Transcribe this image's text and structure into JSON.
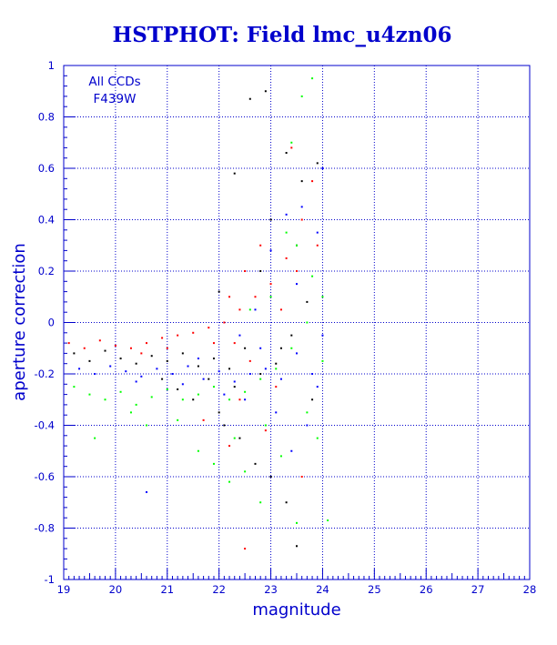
{
  "chart_data": {
    "type": "scatter",
    "title": "HSTPHOT: Field lmc_u4zn06",
    "xlabel": "magnitude",
    "ylabel": "aperture correction",
    "xlim": [
      19,
      28
    ],
    "ylim": [
      -1,
      1
    ],
    "xticks": [
      "19",
      "20",
      "21",
      "22",
      "23",
      "24",
      "25",
      "26",
      "27",
      "28"
    ],
    "yticks": [
      "-1",
      "-0.8",
      "-0.6",
      "-0.4",
      "-0.2",
      "0",
      "0.2",
      "0.4",
      "0.6",
      "0.8",
      "1"
    ],
    "grid": true,
    "annotations": [
      "All CCDs",
      "F439W"
    ],
    "colors": {
      "axis": "#0000cc",
      "grid": "#0000cc"
    },
    "series": [
      {
        "color": "#000000",
        "points": [
          [
            19.2,
            -0.12
          ],
          [
            19.5,
            -0.15
          ],
          [
            19.8,
            -0.11
          ],
          [
            20.1,
            -0.14
          ],
          [
            20.4,
            -0.16
          ],
          [
            20.7,
            -0.13
          ],
          [
            21.0,
            -0.15
          ],
          [
            21.3,
            -0.12
          ],
          [
            21.6,
            -0.17
          ],
          [
            21.9,
            -0.14
          ],
          [
            22.2,
            -0.18
          ],
          [
            22.5,
            -0.1
          ],
          [
            22.8,
            -0.2
          ],
          [
            23.1,
            -0.16
          ],
          [
            23.4,
            -0.05
          ],
          [
            23.7,
            0.08
          ],
          [
            21.5,
            -0.3
          ],
          [
            22.0,
            -0.35
          ],
          [
            22.4,
            -0.45
          ],
          [
            22.7,
            -0.55
          ],
          [
            23.0,
            -0.6
          ],
          [
            23.3,
            -0.7
          ],
          [
            23.5,
            -0.87
          ],
          [
            22.9,
            0.9
          ],
          [
            22.6,
            0.87
          ],
          [
            23.3,
            0.66
          ],
          [
            23.6,
            0.55
          ],
          [
            23.9,
            0.62
          ],
          [
            22.3,
            0.58
          ],
          [
            23.5,
            0.3
          ],
          [
            22.8,
            0.2
          ],
          [
            22.0,
            0.12
          ],
          [
            22.3,
            -0.25
          ],
          [
            21.8,
            -0.22
          ],
          [
            23.2,
            -0.1
          ],
          [
            20.9,
            -0.22
          ],
          [
            21.2,
            -0.26
          ],
          [
            22.1,
            -0.4
          ],
          [
            23.8,
            -0.3
          ],
          [
            23.0,
            0.4
          ]
        ]
      },
      {
        "color": "#ff0000",
        "points": [
          [
            19.1,
            -0.08
          ],
          [
            19.4,
            -0.1
          ],
          [
            19.7,
            -0.07
          ],
          [
            20.0,
            -0.09
          ],
          [
            20.3,
            -0.1
          ],
          [
            20.6,
            -0.08
          ],
          [
            20.9,
            -0.06
          ],
          [
            21.2,
            -0.05
          ],
          [
            21.5,
            -0.04
          ],
          [
            21.8,
            -0.02
          ],
          [
            22.1,
            0.0
          ],
          [
            22.4,
            0.05
          ],
          [
            22.7,
            0.1
          ],
          [
            23.0,
            0.15
          ],
          [
            23.3,
            0.25
          ],
          [
            23.6,
            0.4
          ],
          [
            23.8,
            0.55
          ],
          [
            23.4,
            0.68
          ],
          [
            22.8,
            0.3
          ],
          [
            22.5,
            0.2
          ],
          [
            22.2,
            0.1
          ],
          [
            21.9,
            -0.08
          ],
          [
            22.6,
            -0.15
          ],
          [
            23.1,
            -0.25
          ],
          [
            22.4,
            -0.3
          ],
          [
            22.9,
            -0.42
          ],
          [
            22.2,
            -0.48
          ],
          [
            21.7,
            -0.38
          ],
          [
            22.5,
            -0.88
          ],
          [
            23.6,
            -0.6
          ],
          [
            23.9,
            0.3
          ],
          [
            23.2,
            0.05
          ],
          [
            20.5,
            -0.12
          ],
          [
            21.0,
            -0.1
          ],
          [
            23.5,
            0.2
          ],
          [
            22.3,
            -0.08
          ]
        ]
      },
      {
        "color": "#0000ff",
        "points": [
          [
            19.3,
            -0.18
          ],
          [
            19.6,
            -0.2
          ],
          [
            19.9,
            -0.17
          ],
          [
            20.2,
            -0.19
          ],
          [
            20.5,
            -0.21
          ],
          [
            20.8,
            -0.18
          ],
          [
            21.1,
            -0.2
          ],
          [
            21.4,
            -0.17
          ],
          [
            21.7,
            -0.22
          ],
          [
            22.0,
            -0.19
          ],
          [
            22.3,
            -0.23
          ],
          [
            22.6,
            -0.2
          ],
          [
            22.9,
            -0.18
          ],
          [
            23.2,
            -0.22
          ],
          [
            23.5,
            -0.12
          ],
          [
            23.8,
            -0.2
          ],
          [
            23.6,
            0.45
          ],
          [
            23.3,
            0.42
          ],
          [
            23.0,
            0.28
          ],
          [
            22.7,
            0.05
          ],
          [
            22.4,
            -0.05
          ],
          [
            23.9,
            0.35
          ],
          [
            24.0,
            0.6
          ],
          [
            23.1,
            -0.35
          ],
          [
            22.5,
            -0.3
          ],
          [
            23.4,
            -0.5
          ],
          [
            23.7,
            -0.4
          ],
          [
            22.1,
            -0.28
          ],
          [
            21.6,
            -0.14
          ],
          [
            24.0,
            -0.05
          ],
          [
            23.5,
            0.15
          ],
          [
            22.8,
            -0.1
          ],
          [
            20.4,
            -0.23
          ],
          [
            21.3,
            -0.24
          ],
          [
            23.9,
            -0.25
          ],
          [
            20.6,
            -0.66
          ]
        ]
      },
      {
        "color": "#00ff00",
        "points": [
          [
            19.2,
            -0.25
          ],
          [
            19.5,
            -0.28
          ],
          [
            19.8,
            -0.3
          ],
          [
            20.1,
            -0.27
          ],
          [
            20.4,
            -0.32
          ],
          [
            20.7,
            -0.29
          ],
          [
            21.0,
            -0.26
          ],
          [
            21.3,
            -0.3
          ],
          [
            21.6,
            -0.28
          ],
          [
            21.9,
            -0.25
          ],
          [
            22.2,
            -0.3
          ],
          [
            22.5,
            -0.27
          ],
          [
            22.8,
            -0.22
          ],
          [
            23.1,
            -0.18
          ],
          [
            23.4,
            -0.1
          ],
          [
            23.7,
            0.0
          ],
          [
            24.0,
            -0.15
          ],
          [
            23.8,
            0.18
          ],
          [
            23.5,
            0.3
          ],
          [
            23.3,
            0.35
          ],
          [
            23.6,
            0.88
          ],
          [
            23.8,
            0.95
          ],
          [
            23.4,
            0.7
          ],
          [
            23.0,
            0.1
          ],
          [
            22.6,
            0.05
          ],
          [
            22.3,
            -0.45
          ],
          [
            21.6,
            -0.5
          ],
          [
            21.9,
            -0.55
          ],
          [
            22.2,
            -0.62
          ],
          [
            22.5,
            -0.58
          ],
          [
            22.8,
            -0.7
          ],
          [
            23.2,
            -0.52
          ],
          [
            23.5,
            -0.78
          ],
          [
            24.1,
            -0.77
          ],
          [
            19.6,
            -0.45
          ],
          [
            20.6,
            -0.4
          ],
          [
            20.3,
            -0.35
          ],
          [
            21.2,
            -0.38
          ],
          [
            22.9,
            -0.4
          ],
          [
            23.9,
            -0.45
          ],
          [
            23.7,
            -0.35
          ],
          [
            24.0,
            0.1
          ]
        ]
      }
    ]
  }
}
